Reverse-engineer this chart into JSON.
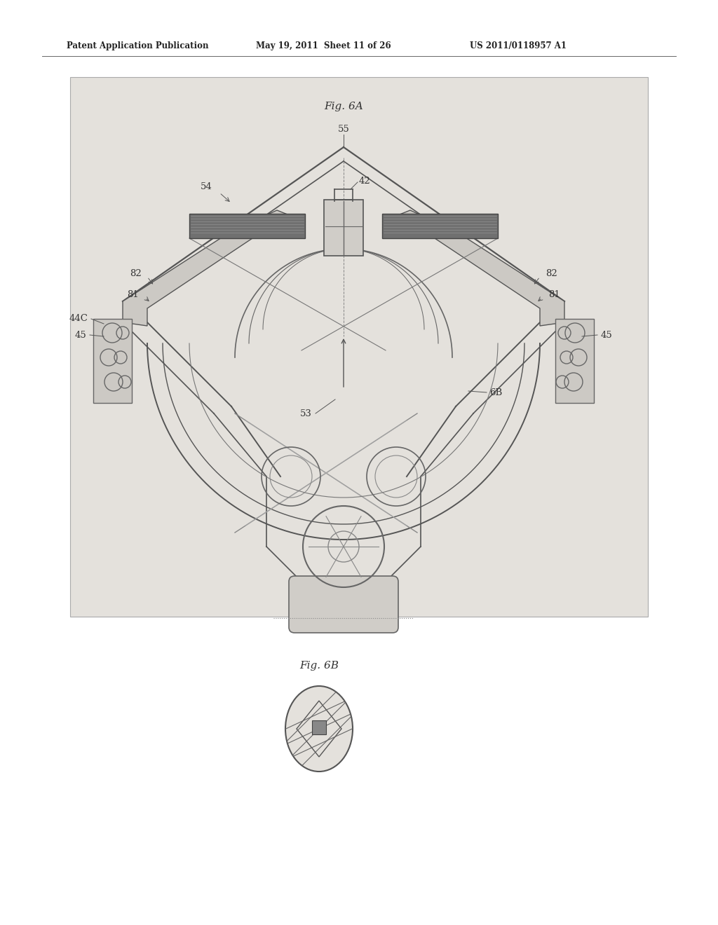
{
  "background_color": "#ffffff",
  "draw_bg": "#e8e6e1",
  "header_left": "Patent Application Publication",
  "header_mid": "May 19, 2011  Sheet 11 of 26",
  "header_right": "US 2011/0118957 A1",
  "fig6a_label": "Fig. 6A",
  "fig6b_label": "Fig. 6B",
  "line_color": "#555555",
  "label_color": "#333333",
  "label_fontsize": 9.5
}
